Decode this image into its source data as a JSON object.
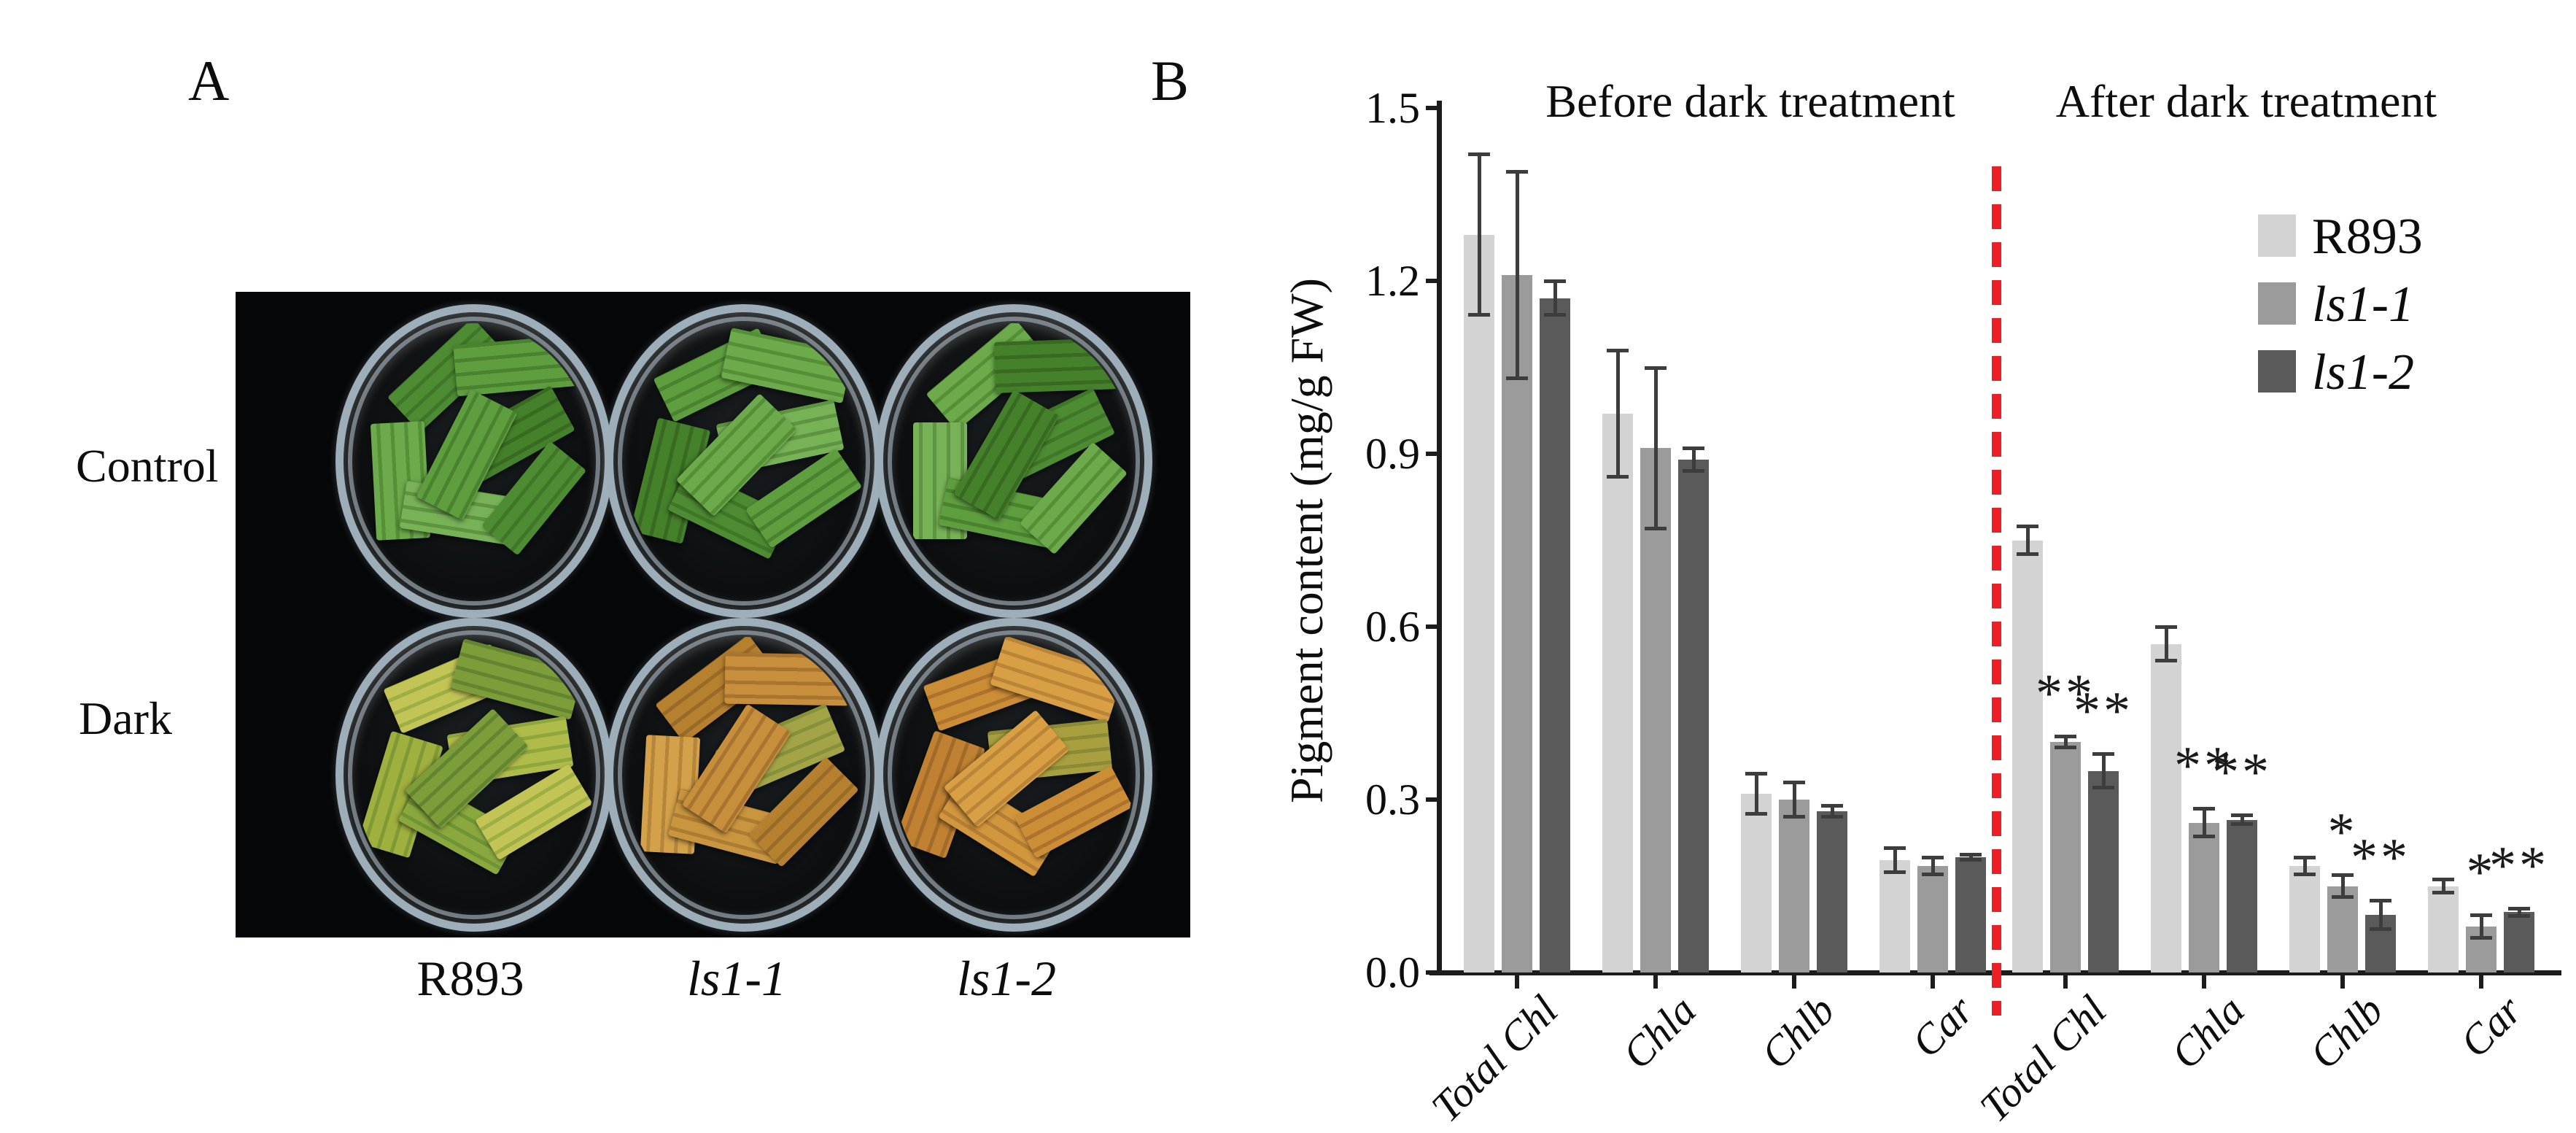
{
  "figure": {
    "panel_a": {
      "label": "A",
      "row_labels": [
        "Control",
        "Dark"
      ],
      "col_labels": [
        {
          "text": "R893",
          "italic": false
        },
        {
          "text": "ls1-1",
          "italic": true
        },
        {
          "text": "ls1-2",
          "italic": true
        }
      ],
      "dishes": [
        {
          "row": 0,
          "col": 0,
          "treatment": "Control",
          "genotype": "R893",
          "palette": "control"
        },
        {
          "row": 0,
          "col": 1,
          "treatment": "Control",
          "genotype": "ls1-1",
          "palette": "control"
        },
        {
          "row": 0,
          "col": 2,
          "treatment": "Control",
          "genotype": "ls1-2",
          "palette": "control"
        },
        {
          "row": 1,
          "col": 0,
          "treatment": "Dark",
          "genotype": "R893",
          "palette": "dark_r893"
        },
        {
          "row": 1,
          "col": 1,
          "treatment": "Dark",
          "genotype": "ls1-1",
          "palette": "dark_ls1_1"
        },
        {
          "row": 1,
          "col": 2,
          "treatment": "Dark",
          "genotype": "ls1-2",
          "palette": "dark_ls1_2"
        }
      ],
      "palettes": {
        "control": [
          [
            "#4e8c33",
            "#3f7628"
          ],
          [
            "#5f9e3f",
            "#4a832f"
          ],
          [
            "#6caa4b",
            "#558f36"
          ],
          [
            "#45812b",
            "#386a21"
          ],
          [
            "#78b257",
            "#5e9440"
          ]
        ],
        "dark_r893": [
          [
            "#9fb03e",
            "#7f9a34"
          ],
          [
            "#b0bc4a",
            "#8fa63c"
          ],
          [
            "#8aa83e",
            "#6f9434"
          ],
          [
            "#c2c455",
            "#9fae44"
          ],
          [
            "#7d9c3a",
            "#648530"
          ]
        ],
        "dark_ls1_1": [
          [
            "#c78f3c",
            "#a87430"
          ],
          [
            "#d3a149",
            "#b5863a"
          ],
          [
            "#a3a347",
            "#87913a"
          ],
          [
            "#c9953f",
            "#ad7c33"
          ],
          [
            "#b5812f",
            "#9a6b28"
          ]
        ],
        "dark_ls1_2": [
          [
            "#cc8d37",
            "#ad722c"
          ],
          [
            "#d89f45",
            "#bb8538"
          ],
          [
            "#c08232",
            "#a26b29"
          ],
          [
            "#a8a03f",
            "#8c8a35"
          ],
          [
            "#d2963d",
            "#b57e33"
          ]
        ]
      }
    },
    "panel_b": {
      "label": "B"
    }
  },
  "chart_data": {
    "type": "bar",
    "title": "",
    "xlabel": "",
    "ylabel": "Pigment content (mg/g FW)",
    "ylim": [
      0,
      1.5
    ],
    "yticks": [
      "0.0",
      "0.3",
      "0.6",
      "0.9",
      "1.2",
      "1.5"
    ],
    "grid": false,
    "legend_position": "upper right",
    "sections": [
      {
        "title": "Before dark treatment"
      },
      {
        "title": "After dark treatment"
      }
    ],
    "series": [
      {
        "name": "R893",
        "color": "#d3d3d3",
        "italic": false
      },
      {
        "name": "ls1-1",
        "color": "#9b9b9b",
        "italic": true
      },
      {
        "name": "ls1-2",
        "color": "#5a5a5a",
        "italic": true
      }
    ],
    "groups": [
      {
        "section": 0,
        "label": "Total Chl",
        "values": [
          1.28,
          1.21,
          1.17
        ],
        "errors": [
          0.14,
          0.18,
          0.03
        ],
        "sig": [
          "",
          "",
          ""
        ]
      },
      {
        "section": 0,
        "label": "Chla",
        "values": [
          0.97,
          0.91,
          0.89
        ],
        "errors": [
          0.11,
          0.14,
          0.02
        ],
        "sig": [
          "",
          "",
          ""
        ]
      },
      {
        "section": 0,
        "label": "Chlb",
        "values": [
          0.31,
          0.3,
          0.28
        ],
        "errors": [
          0.035,
          0.03,
          0.01
        ],
        "sig": [
          "",
          "",
          ""
        ]
      },
      {
        "section": 0,
        "label": "Car",
        "values": [
          0.195,
          0.185,
          0.2
        ],
        "errors": [
          0.022,
          0.015,
          0.005
        ],
        "sig": [
          "",
          "",
          ""
        ]
      },
      {
        "section": 1,
        "label": "Total Chl",
        "values": [
          0.75,
          0.4,
          0.35
        ],
        "errors": [
          0.025,
          0.01,
          0.03
        ],
        "sig": [
          "",
          "**",
          "**"
        ]
      },
      {
        "section": 1,
        "label": "Chla",
        "values": [
          0.57,
          0.26,
          0.265
        ],
        "errors": [
          0.03,
          0.025,
          0.008
        ],
        "sig": [
          "",
          "**",
          "**"
        ]
      },
      {
        "section": 1,
        "label": "Chlb",
        "values": [
          0.185,
          0.15,
          0.1
        ],
        "errors": [
          0.015,
          0.02,
          0.025
        ],
        "sig": [
          "",
          "*",
          "**"
        ]
      },
      {
        "section": 1,
        "label": "Car",
        "values": [
          0.15,
          0.08,
          0.105
        ],
        "errors": [
          0.012,
          0.02,
          0.007
        ],
        "sig": [
          "",
          "*",
          "**"
        ]
      }
    ],
    "divider": {
      "color": "#ec2024",
      "style": "dashed"
    }
  }
}
